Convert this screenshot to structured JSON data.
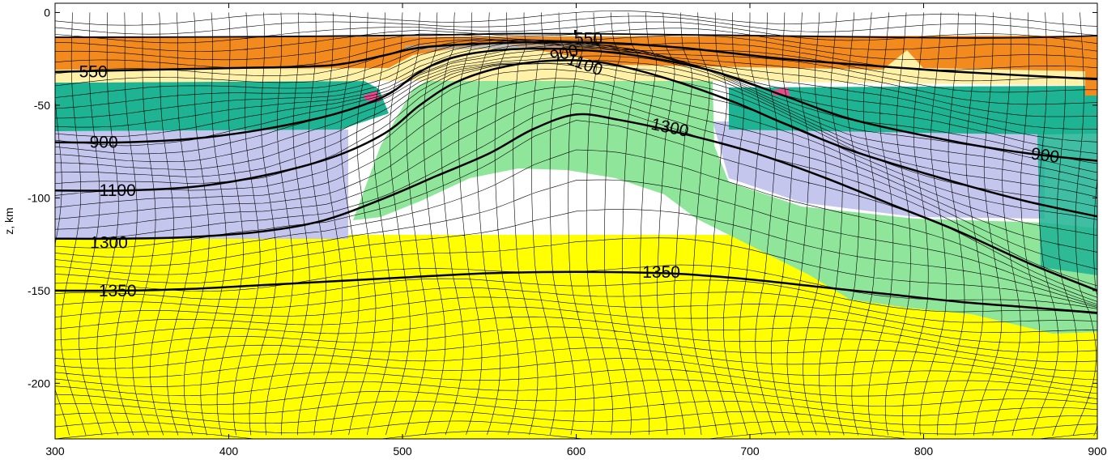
{
  "chart_data": {
    "type": "contour",
    "title": "",
    "xlabel": "",
    "ylabel": "z, km",
    "xlim": [
      300,
      900
    ],
    "ylim": [
      -230,
      5
    ],
    "xticks": [
      300,
      400,
      500,
      600,
      700,
      800,
      900
    ],
    "yticks": [
      0,
      -50,
      -100,
      -150,
      -200
    ],
    "xtick_labels": [
      "300",
      "400",
      "500",
      "600",
      "700",
      "800",
      "900"
    ],
    "ytick_labels": [
      "0",
      "-50",
      "-100",
      "-150",
      "-200"
    ],
    "colors": {
      "upper_crust": "#f28a1e",
      "sediments": "#fff2a8",
      "lower_crust": "#1db393",
      "lithospheric_mantle": "#c4c6ee",
      "oceanic_mantle": "#8fe59a",
      "asthenosphere": "#ffff00",
      "melt": "#e64d8f",
      "sediment_grey": "#a9a9a9"
    },
    "isotherms": [
      {
        "name": "550",
        "points": [
          [
            300,
            -32
          ],
          [
            350,
            -31
          ],
          [
            400,
            -30
          ],
          [
            450,
            -29
          ],
          [
            470,
            -27
          ],
          [
            490,
            -23
          ],
          [
            510,
            -19
          ],
          [
            540,
            -17
          ],
          [
            580,
            -16
          ],
          [
            620,
            -16.5
          ],
          [
            660,
            -19
          ],
          [
            690,
            -22
          ],
          [
            720,
            -25
          ],
          [
            760,
            -28
          ],
          [
            820,
            -32
          ],
          [
            900,
            -36
          ]
        ],
        "labels": [
          {
            "text": "550",
            "x": 322,
            "y": -32,
            "angle": 0
          },
          {
            "text": "550",
            "x": 607,
            "y": -14,
            "angle": 0
          }
        ]
      },
      {
        "name": "900",
        "points": [
          [
            300,
            -70
          ],
          [
            340,
            -70
          ],
          [
            380,
            -68
          ],
          [
            420,
            -63
          ],
          [
            460,
            -55
          ],
          [
            490,
            -45
          ],
          [
            510,
            -32
          ],
          [
            530,
            -24
          ],
          [
            560,
            -20
          ],
          [
            600,
            -20
          ],
          [
            640,
            -24
          ],
          [
            680,
            -32
          ],
          [
            720,
            -45
          ],
          [
            760,
            -58
          ],
          [
            820,
            -70
          ],
          [
            860,
            -76
          ],
          [
            900,
            -80
          ]
        ],
        "labels": [
          {
            "text": "900",
            "x": 328,
            "y": -70,
            "angle": 0
          },
          {
            "text": "900",
            "x": 593,
            "y": -22,
            "angle": -15
          },
          {
            "text": "900",
            "x": 870,
            "y": -77,
            "angle": 8
          }
        ]
      },
      {
        "name": "1100",
        "points": [
          [
            300,
            -96
          ],
          [
            340,
            -96
          ],
          [
            380,
            -94
          ],
          [
            420,
            -88
          ],
          [
            460,
            -78
          ],
          [
            490,
            -65
          ],
          [
            510,
            -50
          ],
          [
            530,
            -38
          ],
          [
            555,
            -30
          ],
          [
            585,
            -26
          ],
          [
            615,
            -27
          ],
          [
            650,
            -35
          ],
          [
            690,
            -48
          ],
          [
            720,
            -60
          ],
          [
            760,
            -75
          ],
          [
            820,
            -92
          ],
          [
            860,
            -102
          ],
          [
            900,
            -110
          ]
        ],
        "labels": [
          {
            "text": "1100",
            "x": 336,
            "y": -96,
            "angle": 0
          },
          {
            "text": "1100",
            "x": 605,
            "y": -28,
            "angle": 20
          }
        ]
      },
      {
        "name": "1300",
        "points": [
          [
            300,
            -122
          ],
          [
            340,
            -122
          ],
          [
            380,
            -121
          ],
          [
            420,
            -118
          ],
          [
            455,
            -112
          ],
          [
            490,
            -100
          ],
          [
            520,
            -88
          ],
          [
            550,
            -76
          ],
          [
            575,
            -63
          ],
          [
            600,
            -55
          ],
          [
            625,
            -58
          ],
          [
            660,
            -65
          ],
          [
            700,
            -75
          ],
          [
            740,
            -88
          ],
          [
            780,
            -103
          ],
          [
            820,
            -118
          ],
          [
            860,
            -135
          ],
          [
            900,
            -150
          ]
        ],
        "labels": [
          {
            "text": "1300",
            "x": 331,
            "y": -124,
            "angle": 0
          },
          {
            "text": "1300",
            "x": 654,
            "y": -62,
            "angle": 12
          }
        ]
      },
      {
        "name": "1350",
        "points": [
          [
            300,
            -150
          ],
          [
            340,
            -150
          ],
          [
            380,
            -149
          ],
          [
            420,
            -147
          ],
          [
            460,
            -145
          ],
          [
            500,
            -143
          ],
          [
            540,
            -141
          ],
          [
            580,
            -140
          ],
          [
            620,
            -140
          ],
          [
            660,
            -141
          ],
          [
            700,
            -144
          ],
          [
            740,
            -148
          ],
          [
            780,
            -152
          ],
          [
            820,
            -156
          ],
          [
            860,
            -159
          ],
          [
            900,
            -162
          ]
        ],
        "labels": [
          {
            "text": "1350",
            "x": 336,
            "y": -150,
            "angle": 0
          },
          {
            "text": "1350",
            "x": 649,
            "y": -140,
            "angle": 0
          }
        ]
      }
    ]
  }
}
